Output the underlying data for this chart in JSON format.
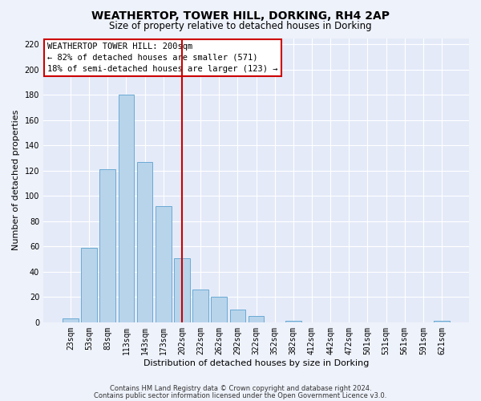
{
  "title": "WEATHERTOP, TOWER HILL, DORKING, RH4 2AP",
  "subtitle": "Size of property relative to detached houses in Dorking",
  "xlabel": "Distribution of detached houses by size in Dorking",
  "ylabel": "Number of detached properties",
  "bar_labels": [
    "23sqm",
    "53sqm",
    "83sqm",
    "113sqm",
    "143sqm",
    "173sqm",
    "202sqm",
    "232sqm",
    "262sqm",
    "292sqm",
    "322sqm",
    "352sqm",
    "382sqm",
    "412sqm",
    "442sqm",
    "472sqm",
    "501sqm",
    "531sqm",
    "561sqm",
    "591sqm",
    "621sqm"
  ],
  "bar_values": [
    3,
    59,
    121,
    180,
    127,
    92,
    51,
    26,
    20,
    10,
    5,
    0,
    1,
    0,
    0,
    0,
    0,
    0,
    0,
    0,
    1
  ],
  "bar_color": "#b8d4eb",
  "bar_edge_color": "#6aaad4",
  "vline_x_index": 6,
  "vline_color": "#cc0000",
  "ylim": [
    0,
    225
  ],
  "yticks": [
    0,
    20,
    40,
    60,
    80,
    100,
    120,
    140,
    160,
    180,
    200,
    220
  ],
  "annotation_title": "WEATHERTOP TOWER HILL: 200sqm",
  "annotation_line1": "← 82% of detached houses are smaller (571)",
  "annotation_line2": "18% of semi-detached houses are larger (123) →",
  "footnote1": "Contains HM Land Registry data © Crown copyright and database right 2024.",
  "footnote2": "Contains public sector information licensed under the Open Government Licence v3.0.",
  "bg_color": "#eef2fb",
  "plot_bg_color": "#e4eaf8",
  "grid_color": "#ffffff",
  "title_fontsize": 10,
  "subtitle_fontsize": 8.5,
  "annotation_box_edge": "#cc0000",
  "xlabel_fontsize": 8,
  "ylabel_fontsize": 8,
  "tick_fontsize": 7,
  "footnote_fontsize": 6
}
